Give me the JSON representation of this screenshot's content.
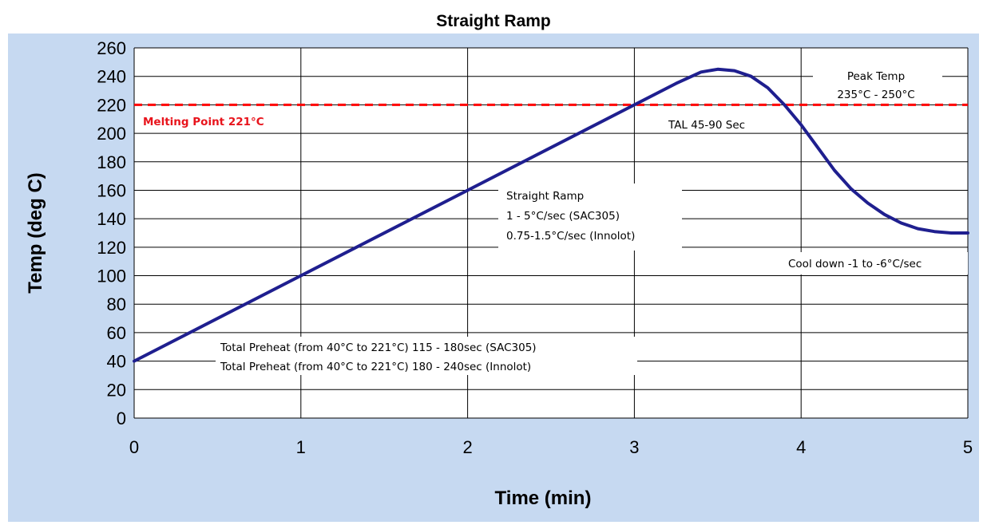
{
  "colors": {
    "frame_bg": "#c6d9f1",
    "plot_bg": "#ffffff",
    "grid": "#000000",
    "curve": "#1f1f8f",
    "melting_line": "#ff0000",
    "melting_text": "#e8141c"
  },
  "chart_data": {
    "type": "line",
    "title": "Straight Ramp",
    "xlabel": "Time (min)",
    "ylabel": "Temp (deg C)",
    "xlim": [
      0,
      5
    ],
    "ylim": [
      0,
      260
    ],
    "xticks": [
      "0",
      "1",
      "2",
      "3",
      "4",
      "5"
    ],
    "yticks": [
      "0",
      "20",
      "40",
      "60",
      "80",
      "100",
      "120",
      "140",
      "160",
      "180",
      "200",
      "220",
      "240",
      "260"
    ],
    "grid": true,
    "series": [
      {
        "x": [
          0,
          1,
          2,
          3,
          3.25,
          3.4,
          3.5,
          3.6,
          3.7,
          3.8,
          3.9,
          4.0,
          4.1,
          4.2,
          4.3,
          4.4,
          4.5,
          4.6,
          4.7,
          4.8,
          4.9,
          5.0
        ],
        "y": [
          40,
          100,
          160,
          220,
          235,
          243,
          245,
          244,
          240,
          232,
          220,
          206,
          190,
          174,
          161,
          151,
          143,
          137,
          133,
          131,
          130,
          130
        ]
      }
    ],
    "reference_lines": [
      {
        "y": 220,
        "label": "Melting Point 221°C"
      }
    ],
    "annotations": {
      "peak_temp": [
        "Peak Temp",
        "235°C - 250°C"
      ],
      "tal": "TAL 45-90 Sec",
      "ramp": [
        "Straight Ramp",
        "1 - 5°C/sec (SAC305)",
        "0.75-1.5°C/sec (Innolot)"
      ],
      "cooldown": "Cool down -1 to -6°C/sec",
      "preheat": [
        "Total Preheat (from 40°C to 221°C) 115 - 180sec (SAC305)",
        "Total Preheat (from 40°C to 221°C) 180 - 240sec (Innolot)"
      ]
    }
  }
}
